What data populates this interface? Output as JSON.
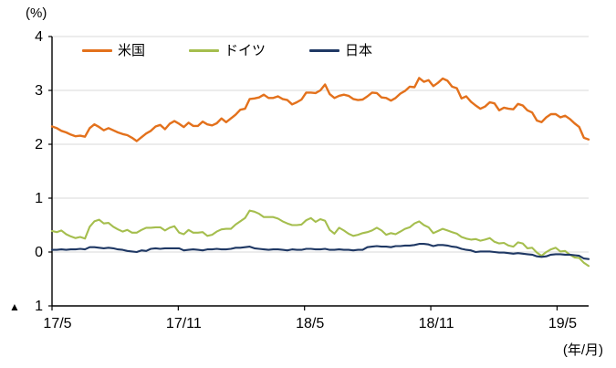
{
  "chart": {
    "y_unit": "(%)",
    "x_unit": "(年/月)"
  },
  "chart_data": {
    "type": "line",
    "title": "",
    "xlabel": "(年/月)",
    "ylabel": "(%)",
    "ylim": [
      -1,
      4
    ],
    "grid": true,
    "legend_position": "top-inside",
    "y_ticks": [
      4,
      3,
      2,
      1,
      0,
      -1
    ],
    "y_tick_labels": [
      "4",
      "3",
      "2",
      "1",
      "0",
      "▲ 1"
    ],
    "x_tick_months": [
      0,
      6,
      12,
      18,
      24
    ],
    "x_tick_labels": [
      "17/5",
      "17/11",
      "18/5",
      "18/11",
      "19/5"
    ],
    "x_range_months": [
      0,
      25.5
    ],
    "series": [
      {
        "name": "米国",
        "color": "#E3711C",
        "values": [
          2.33,
          2.3,
          2.25,
          2.22,
          2.18,
          2.15,
          2.16,
          2.14,
          2.3,
          2.37,
          2.32,
          2.26,
          2.3,
          2.26,
          2.22,
          2.19,
          2.17,
          2.12,
          2.06,
          2.13,
          2.2,
          2.25,
          2.33,
          2.36,
          2.28,
          2.38,
          2.43,
          2.38,
          2.32,
          2.4,
          2.34,
          2.34,
          2.42,
          2.37,
          2.35,
          2.39,
          2.48,
          2.41,
          2.48,
          2.55,
          2.64,
          2.66,
          2.84,
          2.85,
          2.87,
          2.92,
          2.86,
          2.86,
          2.89,
          2.84,
          2.82,
          2.74,
          2.78,
          2.83,
          2.96,
          2.96,
          2.95,
          3.0,
          3.11,
          2.93,
          2.86,
          2.9,
          2.92,
          2.9,
          2.84,
          2.82,
          2.83,
          2.89,
          2.96,
          2.95,
          2.87,
          2.86,
          2.81,
          2.86,
          2.94,
          2.99,
          3.07,
          3.06,
          3.23,
          3.16,
          3.19,
          3.08,
          3.14,
          3.22,
          3.18,
          3.07,
          3.04,
          2.85,
          2.89,
          2.79,
          2.72,
          2.66,
          2.7,
          2.78,
          2.76,
          2.63,
          2.68,
          2.66,
          2.65,
          2.75,
          2.72,
          2.63,
          2.59,
          2.44,
          2.41,
          2.5,
          2.56,
          2.56,
          2.5,
          2.53,
          2.47,
          2.39,
          2.32,
          2.12,
          2.09
        ]
      },
      {
        "name": "ドイツ",
        "color": "#A5BE4E",
        "values": [
          0.39,
          0.37,
          0.4,
          0.33,
          0.29,
          0.26,
          0.28,
          0.25,
          0.47,
          0.57,
          0.6,
          0.53,
          0.54,
          0.47,
          0.42,
          0.38,
          0.41,
          0.36,
          0.36,
          0.41,
          0.45,
          0.45,
          0.46,
          0.46,
          0.4,
          0.45,
          0.48,
          0.36,
          0.33,
          0.41,
          0.36,
          0.36,
          0.37,
          0.3,
          0.32,
          0.38,
          0.42,
          0.43,
          0.43,
          0.51,
          0.57,
          0.63,
          0.77,
          0.75,
          0.71,
          0.65,
          0.65,
          0.65,
          0.62,
          0.57,
          0.53,
          0.5,
          0.5,
          0.51,
          0.59,
          0.63,
          0.56,
          0.61,
          0.58,
          0.41,
          0.34,
          0.45,
          0.4,
          0.34,
          0.3,
          0.32,
          0.35,
          0.37,
          0.4,
          0.45,
          0.4,
          0.32,
          0.35,
          0.33,
          0.38,
          0.43,
          0.46,
          0.53,
          0.57,
          0.5,
          0.46,
          0.35,
          0.39,
          0.43,
          0.4,
          0.37,
          0.34,
          0.28,
          0.25,
          0.23,
          0.24,
          0.21,
          0.23,
          0.26,
          0.19,
          0.16,
          0.17,
          0.12,
          0.1,
          0.18,
          0.16,
          0.07,
          0.08,
          -0.01,
          -0.07,
          0.0,
          0.05,
          0.08,
          0.01,
          0.02,
          -0.05,
          -0.1,
          -0.11,
          -0.2,
          -0.26
        ]
      },
      {
        "name": "日本",
        "color": "#1F3864",
        "values": [
          0.04,
          0.04,
          0.05,
          0.04,
          0.05,
          0.05,
          0.06,
          0.05,
          0.09,
          0.09,
          0.08,
          0.07,
          0.08,
          0.07,
          0.05,
          0.04,
          0.02,
          0.01,
          0.0,
          0.03,
          0.02,
          0.06,
          0.07,
          0.06,
          0.07,
          0.07,
          0.07,
          0.07,
          0.03,
          0.04,
          0.05,
          0.04,
          0.03,
          0.05,
          0.05,
          0.06,
          0.05,
          0.05,
          0.06,
          0.08,
          0.08,
          0.09,
          0.1,
          0.07,
          0.06,
          0.05,
          0.04,
          0.05,
          0.05,
          0.04,
          0.03,
          0.05,
          0.04,
          0.04,
          0.06,
          0.06,
          0.05,
          0.05,
          0.06,
          0.04,
          0.04,
          0.05,
          0.04,
          0.04,
          0.03,
          0.04,
          0.04,
          0.09,
          0.1,
          0.11,
          0.1,
          0.1,
          0.09,
          0.11,
          0.11,
          0.12,
          0.12,
          0.13,
          0.15,
          0.15,
          0.14,
          0.11,
          0.13,
          0.13,
          0.12,
          0.1,
          0.09,
          0.06,
          0.04,
          0.03,
          0.0,
          0.01,
          0.01,
          0.01,
          0.0,
          -0.01,
          -0.01,
          -0.02,
          -0.03,
          -0.02,
          -0.03,
          -0.04,
          -0.05,
          -0.08,
          -0.09,
          -0.08,
          -0.05,
          -0.04,
          -0.04,
          -0.05,
          -0.05,
          -0.06,
          -0.07,
          -0.12,
          -0.13
        ]
      }
    ]
  }
}
